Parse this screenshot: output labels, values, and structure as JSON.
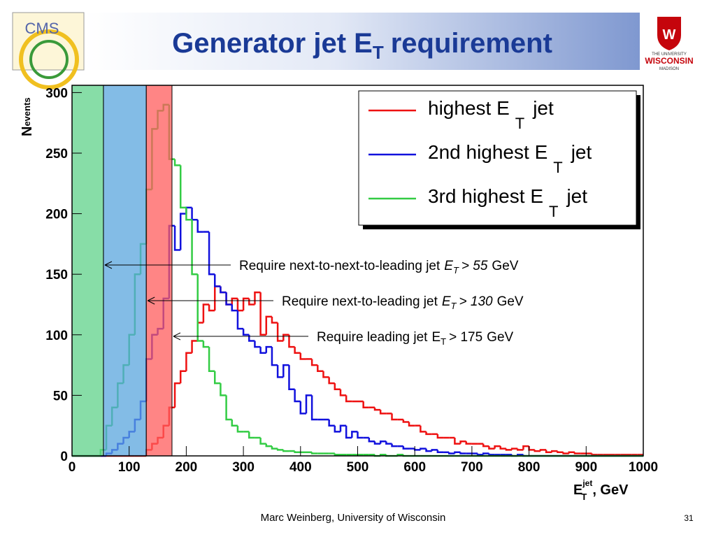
{
  "header": {
    "title": "Generator jet E",
    "title_sub": "T",
    "title_end": "requirement"
  },
  "logos": {
    "left": "CMS",
    "right_top": "THE UNIVERSITY",
    "right_mid": "WISCONSIN",
    "right_bottom": "MADISON",
    "right_crest": "W"
  },
  "footer": {
    "author": "Marc Weinberg, University of Wisconsin",
    "page": "31"
  },
  "chart_data": {
    "type": "histogram",
    "xlabel": {
      "main": "E",
      "sup": "jet",
      "sub": "T",
      "end": ", GeV"
    },
    "ylabel": {
      "main": "N",
      "sub": "events"
    },
    "xlim": [
      0,
      1000
    ],
    "ylim": [
      0,
      306
    ],
    "xticks": [
      0,
      100,
      200,
      300,
      400,
      500,
      600,
      700,
      800,
      900,
      1000
    ],
    "yticks": [
      0,
      50,
      100,
      150,
      200,
      250,
      300
    ],
    "legend": "top-right",
    "bins": [
      0,
      10,
      20,
      30,
      40,
      50,
      60,
      70,
      80,
      90,
      100,
      110,
      120,
      130,
      140,
      150,
      160,
      170,
      180,
      190,
      200,
      210,
      220,
      230,
      240,
      250,
      260,
      270,
      280,
      290,
      300,
      310,
      320,
      330,
      340,
      350,
      360,
      370,
      380,
      390,
      400,
      410,
      420,
      430,
      440,
      450,
      460,
      470,
      480,
      490,
      500,
      510,
      520,
      530,
      540,
      550,
      560,
      570,
      580,
      590,
      600,
      610,
      620,
      630,
      640,
      650,
      660,
      670,
      680,
      690,
      700,
      710,
      720,
      730,
      740,
      750,
      760,
      770,
      780,
      790,
      800,
      810,
      820,
      830,
      840,
      850,
      860,
      870,
      880,
      890,
      900,
      910,
      920,
      930,
      940,
      950,
      960,
      970,
      980,
      990,
      1000
    ],
    "series": [
      {
        "name": "highest E",
        "name_sub": "T",
        "name_end": "jet",
        "color": "#ee1111",
        "values": [
          0,
          0,
          0,
          0,
          0,
          0,
          0,
          0,
          0,
          0,
          0,
          0,
          0,
          5,
          10,
          15,
          25,
          40,
          60,
          70,
          85,
          95,
          110,
          125,
          120,
          140,
          135,
          125,
          130,
          120,
          130,
          125,
          135,
          100,
          115,
          110,
          95,
          100,
          90,
          85,
          80,
          80,
          75,
          70,
          65,
          60,
          55,
          50,
          45,
          45,
          45,
          40,
          40,
          38,
          35,
          35,
          30,
          30,
          28,
          25,
          25,
          20,
          18,
          18,
          15,
          15,
          15,
          10,
          12,
          10,
          10,
          10,
          8,
          6,
          8,
          6,
          5,
          6,
          5,
          8,
          5,
          4,
          5,
          3,
          4,
          3,
          2,
          3,
          2,
          2,
          2,
          1,
          1,
          1,
          1,
          1,
          1,
          1,
          1,
          1
        ]
      },
      {
        "name": "2nd highest E",
        "name_sub": "T",
        "name_end": "jet",
        "color": "#1111dd",
        "values": [
          0,
          0,
          0,
          0,
          0,
          0,
          2,
          5,
          10,
          15,
          20,
          30,
          45,
          80,
          100,
          105,
          130,
          190,
          170,
          200,
          205,
          195,
          185,
          185,
          150,
          140,
          135,
          125,
          120,
          105,
          100,
          95,
          90,
          85,
          90,
          75,
          65,
          75,
          55,
          45,
          35,
          50,
          30,
          30,
          30,
          25,
          20,
          25,
          15,
          20,
          15,
          15,
          12,
          10,
          12,
          10,
          8,
          8,
          6,
          6,
          5,
          6,
          4,
          5,
          3,
          3,
          2,
          3,
          2,
          2,
          2,
          1,
          2,
          1,
          1,
          1,
          1,
          0,
          1,
          0,
          0,
          0,
          0,
          0,
          0,
          0,
          0,
          0,
          0,
          0,
          0,
          0,
          0,
          0,
          0,
          0,
          0,
          0,
          0,
          0
        ]
      },
      {
        "name": "3rd highest E",
        "name_sub": "T",
        "name_end": "jet",
        "color": "#33cc44",
        "values": [
          0,
          0,
          0,
          0,
          0,
          5,
          25,
          40,
          60,
          75,
          100,
          150,
          175,
          220,
          270,
          285,
          290,
          245,
          240,
          205,
          195,
          150,
          95,
          90,
          70,
          60,
          50,
          30,
          25,
          20,
          20,
          15,
          15,
          10,
          8,
          6,
          5,
          4,
          4,
          3,
          3,
          3,
          2,
          2,
          2,
          2,
          1,
          1,
          1,
          1,
          1,
          1,
          1,
          0,
          1,
          0,
          0,
          1,
          0,
          0,
          0,
          0,
          0,
          0,
          0,
          0,
          0,
          0,
          0,
          0,
          0,
          0,
          0,
          0,
          0,
          0,
          0,
          0,
          0,
          0,
          0,
          0,
          0,
          0,
          0,
          0,
          0,
          0,
          0,
          0,
          0,
          0,
          0,
          0,
          0,
          0,
          0,
          0,
          0,
          0
        ]
      }
    ],
    "bands": [
      {
        "xmin": 0,
        "xmax": 55,
        "color": "#5fd18a"
      },
      {
        "xmin": 55,
        "xmax": 130,
        "color": "#5aa5dd"
      },
      {
        "xmin": 130,
        "xmax": 175,
        "color": "#ff5c5c"
      }
    ],
    "annotations": [
      {
        "text": "Require next-to-next-to-leading jet",
        "var": "E",
        "sub": "T",
        "cut": "> 55",
        "unit": "GeV",
        "italic": true
      },
      {
        "text": "Require next-to-leading jet",
        "var": "E",
        "sub": "T",
        "cut": "> 130",
        "unit": "GeV",
        "italic": true
      },
      {
        "text": "Require leading jet",
        "var": "E",
        "sub": "T",
        "cut": "> 175",
        "unit": "GeV",
        "italic": false
      }
    ]
  }
}
